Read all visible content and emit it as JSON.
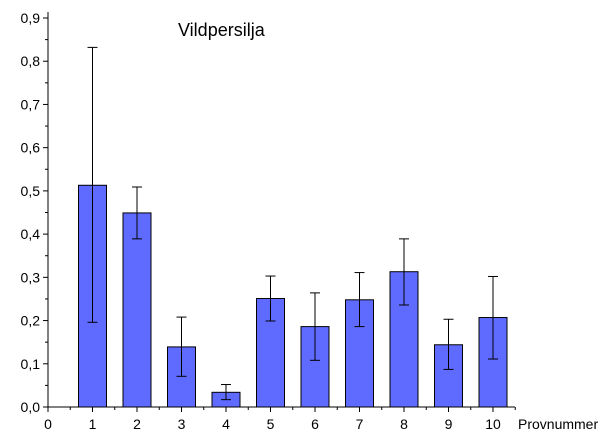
{
  "chart_data": {
    "type": "bar",
    "title": "Vildpersilja",
    "xlabel": "Provnummer",
    "ylabel": "",
    "categories": [
      "1",
      "2",
      "3",
      "4",
      "5",
      "6",
      "7",
      "8",
      "9",
      "10"
    ],
    "x_tick_labels": [
      "0",
      "1",
      "2",
      "3",
      "4",
      "5",
      "6",
      "7",
      "8",
      "9",
      "10"
    ],
    "y_tick_labels": [
      "0,0",
      "0,1",
      "0,2",
      "0,3",
      "0,4",
      "0,5",
      "0,6",
      "0,7",
      "0,8",
      "0,9"
    ],
    "ylim": [
      0,
      0.9
    ],
    "xlim": [
      0,
      11
    ],
    "series": [
      {
        "values": [
          0.513,
          0.449,
          0.139,
          0.034,
          0.251,
          0.186,
          0.248,
          0.313,
          0.144,
          0.207
        ],
        "error_low": [
          0.196,
          0.389,
          0.071,
          0.017,
          0.199,
          0.108,
          0.186,
          0.236,
          0.087,
          0.111
        ],
        "error_high": [
          0.832,
          0.509,
          0.208,
          0.052,
          0.303,
          0.264,
          0.311,
          0.389,
          0.203,
          0.302
        ]
      }
    ],
    "bar_color": "#5f6bff",
    "grid": false,
    "legend": "none"
  }
}
